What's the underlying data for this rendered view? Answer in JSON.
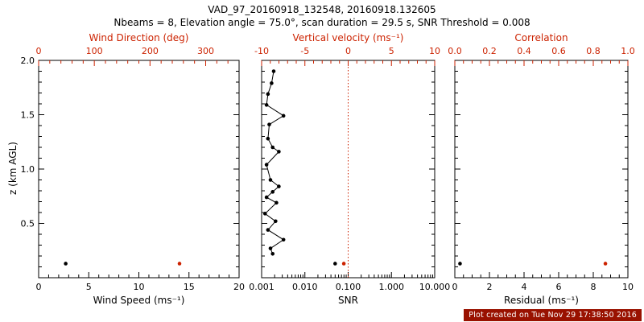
{
  "header": {
    "title": "VAD_97_20160918_132548, 20160918.132605",
    "subtitle": "Nbeams = 8, Elevation angle = 75.0°, scan duration = 29.5 s, SNR Threshold = 0.008"
  },
  "footer": {
    "text": "Plot created on Tue Nov 29 17:38:50 2016"
  },
  "colors": {
    "axis": "#000000",
    "secondary": "#cc2200",
    "footer_bg": "#991100",
    "background": "#ffffff"
  },
  "yaxis": {
    "label": "z (km AGL)",
    "min": 0,
    "max": 2,
    "tick_values": [
      0.5,
      1.0,
      1.5,
      2.0
    ],
    "tick_labels": [
      "0.5",
      "1.0",
      "1.5",
      "2.0"
    ],
    "minor_step": 0.1
  },
  "chart_data": [
    {
      "type": "scatter",
      "name": "wind-panel",
      "bottom_axis": {
        "label": "Wind Speed (ms⁻¹)",
        "scale": "linear",
        "min": 0,
        "max": 20,
        "tick_values": [
          0,
          5,
          10,
          15,
          20
        ],
        "tick_labels": [
          "0",
          "5",
          "10",
          "15",
          "20"
        ],
        "minor_div": 5
      },
      "top_axis": {
        "label": "Wind Direction (deg)",
        "scale": "linear",
        "min": 0,
        "max": 360,
        "tick_values": [
          0,
          100,
          200,
          300
        ],
        "tick_labels": [
          "0",
          "100",
          "200",
          "300"
        ],
        "minor_div": 5
      },
      "series": [
        {
          "name": "wind-speed",
          "axis": "bottom",
          "color": "#000000",
          "marker": true,
          "points": [
            {
              "x": 2.7,
              "z": 0.13
            }
          ]
        },
        {
          "name": "wind-direction",
          "axis": "top",
          "color": "#cc2200",
          "marker": true,
          "points": [
            {
              "x": 253,
              "z": 0.13
            }
          ]
        }
      ]
    },
    {
      "type": "line-scatter",
      "name": "snr-panel",
      "bottom_axis": {
        "label": "SNR",
        "scale": "log",
        "min": 0.001,
        "max": 10,
        "tick_values": [
          0.001,
          0.01,
          0.1,
          1,
          10
        ],
        "tick_labels": [
          "0.001",
          "0.010",
          "0.100",
          "1.000",
          "10.000"
        ]
      },
      "top_axis": {
        "label": "Vertical velocity (ms⁻¹)",
        "scale": "linear",
        "min": -10,
        "max": 10,
        "tick_values": [
          -10,
          -5,
          0,
          5,
          10
        ],
        "tick_labels": [
          "-10",
          "-5",
          "0",
          "5",
          "10"
        ],
        "minor_div": 5
      },
      "vline_top": 0,
      "series": [
        {
          "name": "snr-profile",
          "axis": "bottom",
          "color": "#000000",
          "line": true,
          "marker": true,
          "points": [
            {
              "x": 0.0019,
              "z": 1.9
            },
            {
              "x": 0.0017,
              "z": 1.79
            },
            {
              "x": 0.0014,
              "z": 1.69
            },
            {
              "x": 0.0013,
              "z": 1.59
            },
            {
              "x": 0.0032,
              "z": 1.49
            },
            {
              "x": 0.0015,
              "z": 1.41
            },
            {
              "x": 0.0014,
              "z": 1.28
            },
            {
              "x": 0.0018,
              "z": 1.2
            },
            {
              "x": 0.0025,
              "z": 1.16
            },
            {
              "x": 0.0013,
              "z": 1.04
            },
            {
              "x": 0.0016,
              "z": 0.9
            },
            {
              "x": 0.0025,
              "z": 0.84
            },
            {
              "x": 0.0018,
              "z": 0.79
            },
            {
              "x": 0.0013,
              "z": 0.74
            },
            {
              "x": 0.0022,
              "z": 0.69
            },
            {
              "x": 0.0012,
              "z": 0.59
            },
            {
              "x": 0.0021,
              "z": 0.52
            },
            {
              "x": 0.0014,
              "z": 0.44
            },
            {
              "x": 0.0032,
              "z": 0.35
            },
            {
              "x": 0.0016,
              "z": 0.27
            },
            {
              "x": 0.0018,
              "z": 0.22
            }
          ]
        },
        {
          "name": "snr-surface",
          "axis": "bottom",
          "color": "#000000",
          "marker": true,
          "points": [
            {
              "x": 0.05,
              "z": 0.13
            }
          ]
        },
        {
          "name": "vertical-velocity",
          "axis": "top",
          "color": "#cc2200",
          "marker": true,
          "points": [
            {
              "x": -0.5,
              "z": 0.13
            }
          ]
        }
      ]
    },
    {
      "type": "scatter",
      "name": "residual-panel",
      "bottom_axis": {
        "label": "Residual (ms⁻¹)",
        "scale": "linear",
        "min": 0,
        "max": 10,
        "tick_values": [
          0,
          2,
          4,
          6,
          8,
          10
        ],
        "tick_labels": [
          "0",
          "2",
          "4",
          "6",
          "8",
          "10"
        ],
        "minor_div": 4
      },
      "top_axis": {
        "label": "Correlation",
        "scale": "linear",
        "min": 0,
        "max": 1,
        "tick_values": [
          0,
          0.2,
          0.4,
          0.6,
          0.8,
          1.0
        ],
        "tick_labels": [
          "0.0",
          "0.2",
          "0.4",
          "0.6",
          "0.8",
          "1.0"
        ],
        "minor_div": 4
      },
      "series": [
        {
          "name": "residual",
          "axis": "bottom",
          "color": "#000000",
          "marker": true,
          "points": [
            {
              "x": 0.3,
              "z": 0.13
            }
          ]
        },
        {
          "name": "correlation",
          "axis": "top",
          "color": "#cc2200",
          "marker": true,
          "points": [
            {
              "x": 0.87,
              "z": 0.13
            }
          ]
        }
      ]
    }
  ]
}
